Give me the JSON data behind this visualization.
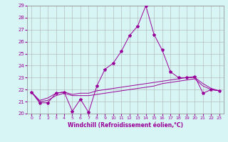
{
  "x": [
    0,
    1,
    2,
    3,
    4,
    5,
    6,
    7,
    8,
    9,
    10,
    11,
    12,
    13,
    14,
    15,
    16,
    17,
    18,
    19,
    20,
    21,
    22,
    23
  ],
  "line1": [
    21.8,
    20.9,
    20.9,
    21.7,
    21.8,
    20.2,
    21.2,
    20.1,
    22.3,
    23.7,
    24.2,
    25.2,
    26.5,
    27.3,
    29.0,
    26.6,
    25.3,
    23.5,
    23.0,
    23.0,
    23.1,
    21.7,
    22.0,
    21.9
  ],
  "line2": [
    21.8,
    21.1,
    21.3,
    21.7,
    21.8,
    21.6,
    21.7,
    21.7,
    21.9,
    22.0,
    22.1,
    22.2,
    22.3,
    22.4,
    22.5,
    22.6,
    22.7,
    22.8,
    22.9,
    23.0,
    23.0,
    22.5,
    22.1,
    21.9
  ],
  "line3": [
    21.8,
    21.0,
    21.1,
    21.5,
    21.7,
    21.5,
    21.5,
    21.5,
    21.6,
    21.7,
    21.8,
    21.9,
    22.0,
    22.1,
    22.2,
    22.3,
    22.5,
    22.6,
    22.7,
    22.8,
    22.9,
    22.3,
    22.0,
    21.9
  ],
  "line_color": "#990099",
  "bg_color": "#d8f5f5",
  "grid_color": "#b0b0b0",
  "ylim": [
    20,
    29
  ],
  "yticks": [
    20,
    21,
    22,
    23,
    24,
    25,
    26,
    27,
    28,
    29
  ],
  "xticks": [
    0,
    1,
    2,
    3,
    4,
    5,
    6,
    7,
    8,
    9,
    10,
    11,
    12,
    13,
    14,
    15,
    16,
    17,
    18,
    19,
    20,
    21,
    22,
    23
  ],
  "xlabel": "Windchill (Refroidissement éolien,°C)",
  "marker": "*",
  "markersize": 3,
  "linewidth": 0.7,
  "tick_fontsize": 5,
  "xlabel_fontsize": 5.5
}
